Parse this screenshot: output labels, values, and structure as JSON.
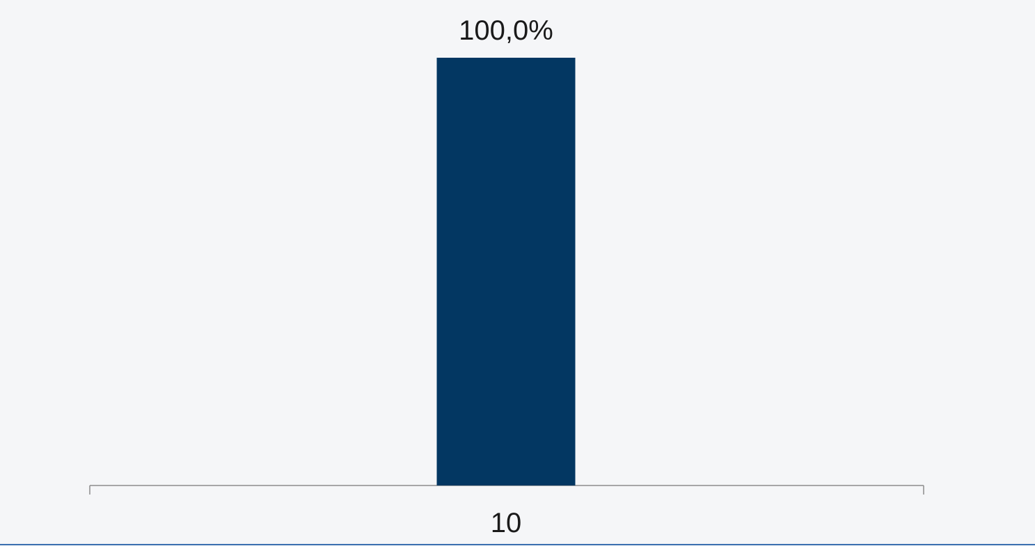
{
  "chart_data": {
    "type": "bar",
    "categories": [
      "10"
    ],
    "values": [
      100.0
    ],
    "data_labels": [
      "100,0%"
    ],
    "ylim": [
      0,
      100
    ],
    "grid": false,
    "colors": {
      "bar": "#033762",
      "axis": "#8c8c8c",
      "text": "#1a1a1a",
      "background": "#f5f6f8",
      "accent_line": "#3a6fb0"
    }
  }
}
